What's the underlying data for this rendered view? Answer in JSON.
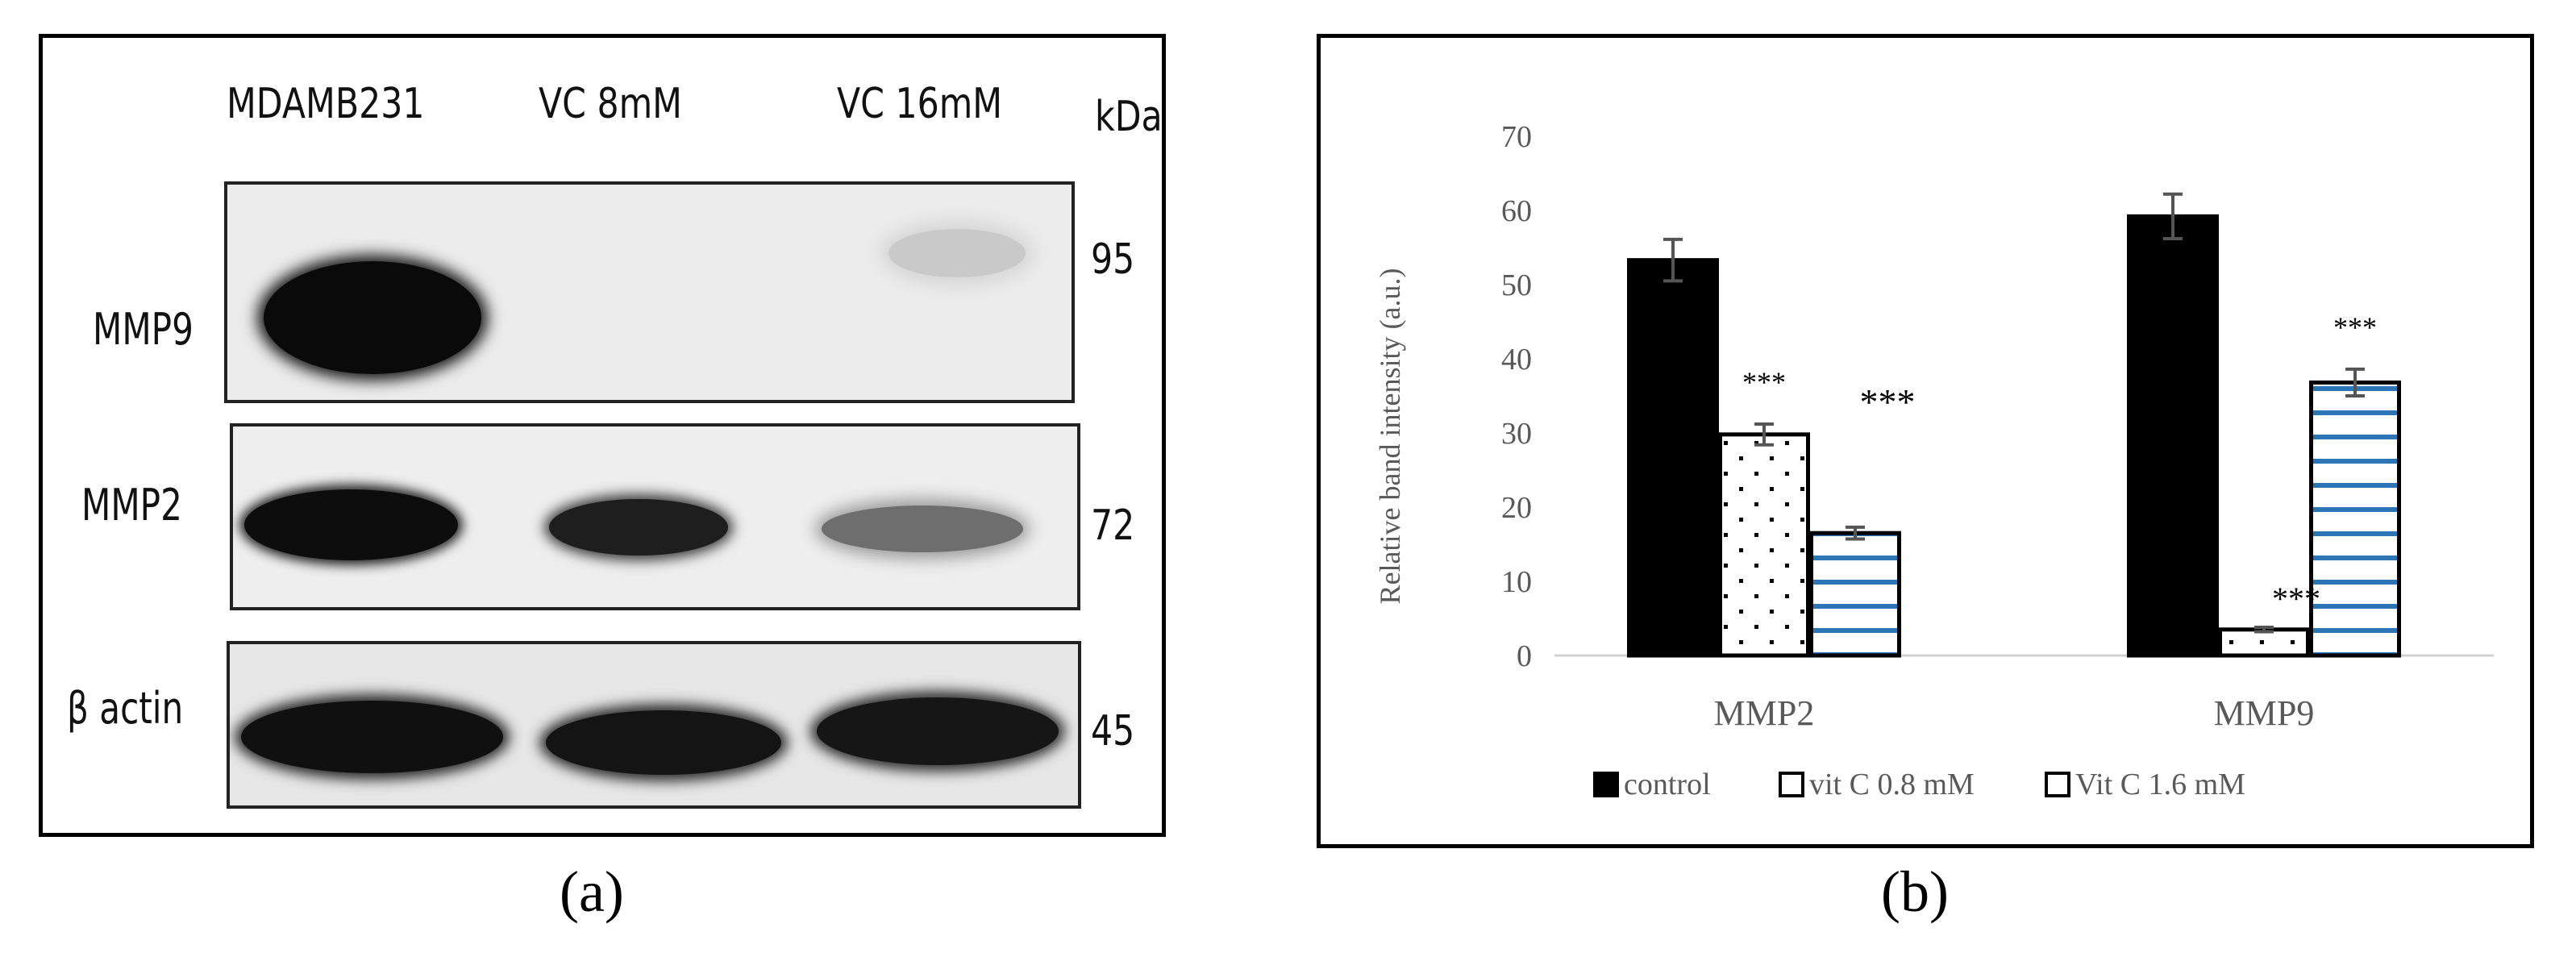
{
  "panel_a": {
    "caption": "(a)",
    "lanes": [
      "MDAMB231",
      "VC 8mM",
      "VC 16mM"
    ],
    "kda_header": "kDa",
    "rows": [
      {
        "label": "MMP9",
        "kda": "95"
      },
      {
        "label": "MMP2",
        "kda": "72"
      },
      {
        "label": "β actin",
        "kda": "45"
      }
    ]
  },
  "panel_b": {
    "caption": "(b)"
  },
  "chart_data": {
    "type": "bar",
    "categories": [
      "MMP2",
      "MMP9"
    ],
    "ylabel": "Relative band intensity (a.u.)",
    "ylim": [
      0,
      70
    ],
    "yticks": [
      0,
      10,
      20,
      30,
      40,
      50,
      60,
      70
    ],
    "grid": false,
    "legend_position": "bottom",
    "series": [
      {
        "name": "control",
        "values": [
          53.3,
          59.2
        ],
        "errors": [
          2.8,
          3.0
        ],
        "significance": [
          "",
          ""
        ],
        "fill": "solid",
        "color": "#000000"
      },
      {
        "name": "vit C 0.8 mM",
        "values": [
          29.8,
          3.5
        ],
        "errors": [
          1.4,
          0.3
        ],
        "significance": [
          "***",
          "***"
        ],
        "fill": "dotted",
        "color": "#000000"
      },
      {
        "name": "Vit C 1.6 mM",
        "values": [
          16.5,
          36.8
        ],
        "errors": [
          0.8,
          1.8
        ],
        "significance": [
          "***",
          "***"
        ],
        "fill": "horizontal-lines",
        "color": "#2e75b6"
      }
    ]
  }
}
